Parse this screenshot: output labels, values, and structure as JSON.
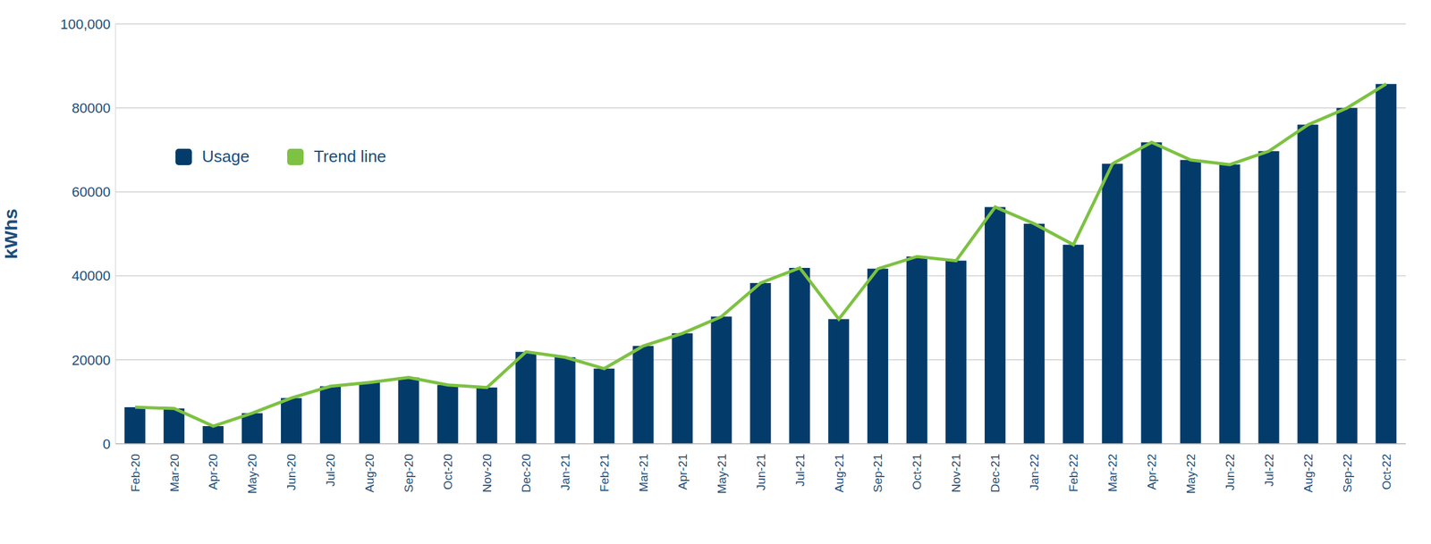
{
  "chart_data": {
    "type": "bar",
    "y_label": "kWhs",
    "categories": [
      "Feb-20",
      "Mar-20",
      "Apr-20",
      "May-20",
      "Jun-20",
      "Jul-20",
      "Aug-20",
      "Sep-20",
      "Oct-20",
      "Nov-20",
      "Dec-20",
      "Jan-21",
      "Feb-21",
      "Mar-21",
      "Apr-21",
      "May-21",
      "Jun-21",
      "Jul-21",
      "Aug-21",
      "Sep-21",
      "Oct-21",
      "Nov-21",
      "Dec-21",
      "Jan-22",
      "Feb-22",
      "Mar-22",
      "Apr-22",
      "May-22",
      "Jun-22",
      "Jul-22",
      "Aug-22",
      "Sep-22",
      "Oct-22"
    ],
    "series": [
      {
        "name": "Usage",
        "type": "bar",
        "color": "#033c6b",
        "values": [
          8700,
          8400,
          4200,
          7300,
          10900,
          13700,
          14600,
          15800,
          14000,
          13400,
          21900,
          20600,
          17900,
          23300,
          26300,
          30300,
          38300,
          41900,
          29700,
          41700,
          44600,
          43600,
          56400,
          52400,
          47400,
          66700,
          71800,
          67600,
          66500,
          69700,
          76000,
          80000,
          85700
        ]
      },
      {
        "name": "Trend line",
        "type": "line",
        "color": "#7dc242",
        "values": [
          8700,
          8400,
          4200,
          7300,
          10900,
          13700,
          14600,
          15800,
          14000,
          13400,
          21900,
          20600,
          17900,
          23300,
          26300,
          30300,
          38300,
          41900,
          29700,
          41700,
          44600,
          43600,
          56400,
          52400,
          47400,
          66700,
          71800,
          67600,
          66500,
          69700,
          76000,
          80000,
          85700
        ]
      }
    ],
    "ylim": [
      0,
      100000
    ],
    "yticks": [
      0,
      20000,
      40000,
      60000,
      80000,
      {
        "value": 100000,
        "label": "100,000"
      }
    ],
    "grid": true,
    "legend": "upper left"
  }
}
